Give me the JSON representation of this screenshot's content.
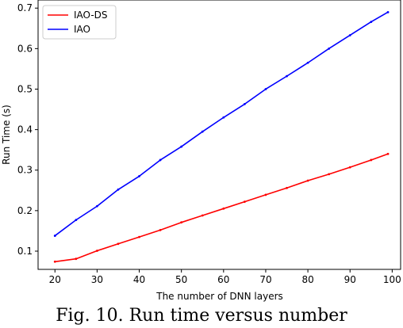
{
  "caption": "Fig. 10. Run time versus number",
  "chart_data": {
    "type": "line",
    "title": "",
    "xlabel": "The number of DNN layers",
    "ylabel": "Run Time (s)",
    "xlim": [
      16,
      102
    ],
    "ylim": [
      0.055,
      0.72
    ],
    "xticks": [
      20,
      30,
      40,
      50,
      60,
      70,
      80,
      90,
      100
    ],
    "yticks": [
      0.1,
      0.2,
      0.3,
      0.4,
      0.5,
      0.6,
      0.7
    ],
    "grid": false,
    "legend": "top-left",
    "x": [
      20,
      25,
      30,
      35,
      40,
      45,
      50,
      55,
      60,
      65,
      70,
      75,
      80,
      85,
      90,
      95,
      99
    ],
    "series": [
      {
        "name": "IAO-DS",
        "color": "#ff0000",
        "values": [
          0.074,
          0.081,
          0.101,
          0.118,
          0.135,
          0.152,
          0.171,
          0.188,
          0.205,
          0.222,
          0.239,
          0.256,
          0.274,
          0.29,
          0.307,
          0.325,
          0.34
        ]
      },
      {
        "name": "IAO",
        "color": "#0000ff",
        "values": [
          0.138,
          0.177,
          0.211,
          0.252,
          0.285,
          0.325,
          0.358,
          0.395,
          0.43,
          0.463,
          0.5,
          0.532,
          0.565,
          0.6,
          0.633,
          0.666,
          0.69
        ]
      }
    ]
  }
}
